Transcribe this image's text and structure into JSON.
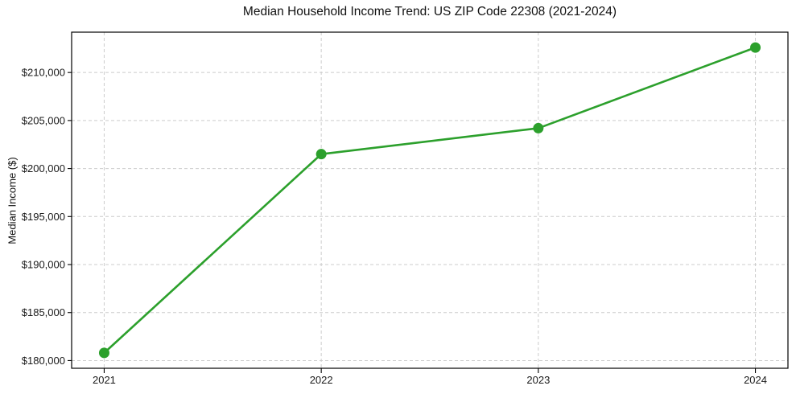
{
  "chart_data": {
    "type": "line",
    "title": "Median Household Income Trend: US ZIP Code 22308 (2021-2024)",
    "xlabel": "",
    "ylabel": "Median Income ($)",
    "categories": [
      2021,
      2022,
      2023,
      2024
    ],
    "x_tick_labels": [
      "2021",
      "2022",
      "2023",
      "2024"
    ],
    "series": [
      {
        "name": "Median Household Income",
        "values": [
          180800,
          201500,
          204200,
          212600
        ],
        "color": "#2ca02c",
        "marker": "circle"
      }
    ],
    "yticks": [
      180000,
      185000,
      190000,
      195000,
      200000,
      205000,
      210000
    ],
    "y_tick_labels": [
      "$180,000",
      "$185,000",
      "$190,000",
      "$195,000",
      "$200,000",
      "$205,000",
      "$210,000"
    ],
    "ylim": [
      179200,
      214200
    ],
    "xlim": [
      2020.85,
      2024.15
    ],
    "grid": "both-dashed",
    "legend": "none",
    "line_width": 2.6,
    "marker_size": 6.5
  },
  "style": {
    "accent_green": "#2ca02c",
    "grid_color": "#cccccc",
    "spine_color": "#000000",
    "tick_label_color": "#1a1a1a",
    "background": "#ffffff"
  }
}
